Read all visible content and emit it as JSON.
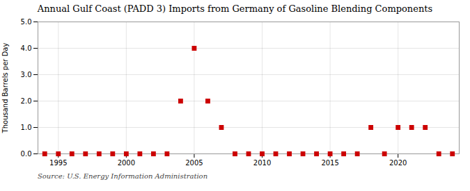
{
  "chart_data": {
    "type": "scatter",
    "title": "Annual Gulf Coast (PADD 3) Imports from Germany of Gasoline Blending Components",
    "ylabel": "Thousand Barrels per Day",
    "source": "Source: U.S. Energy Information Administration",
    "x": [
      1994,
      1995,
      1996,
      1997,
      1998,
      1999,
      2000,
      2001,
      2002,
      2003,
      2004,
      2005,
      2006,
      2007,
      2008,
      2009,
      2010,
      2011,
      2012,
      2013,
      2014,
      2015,
      2016,
      2017,
      2018,
      2019,
      2020,
      2021,
      2022,
      2023,
      2024
    ],
    "values": [
      0,
      0,
      0,
      0,
      0,
      0,
      0,
      0,
      0,
      0,
      2,
      4,
      2,
      1,
      0,
      0,
      0,
      0,
      0,
      0,
      0,
      0,
      0,
      0,
      1,
      0,
      1,
      1,
      1,
      0,
      0
    ],
    "color": "#cc0000",
    "marker": "square",
    "xlim": [
      1993.5,
      2024.5
    ],
    "ylim": [
      0.0,
      5.0
    ],
    "xticks": [
      1995,
      2000,
      2005,
      2010,
      2015,
      2020
    ],
    "yticks": [
      {
        "value": 0,
        "label": "0.0"
      },
      {
        "value": 1,
        "label": "1.0"
      },
      {
        "value": 2,
        "label": "2.0"
      },
      {
        "value": 3,
        "label": "3.0"
      },
      {
        "value": 4,
        "label": "4.0"
      },
      {
        "value": 5,
        "label": "5.0"
      }
    ],
    "grid": true
  }
}
